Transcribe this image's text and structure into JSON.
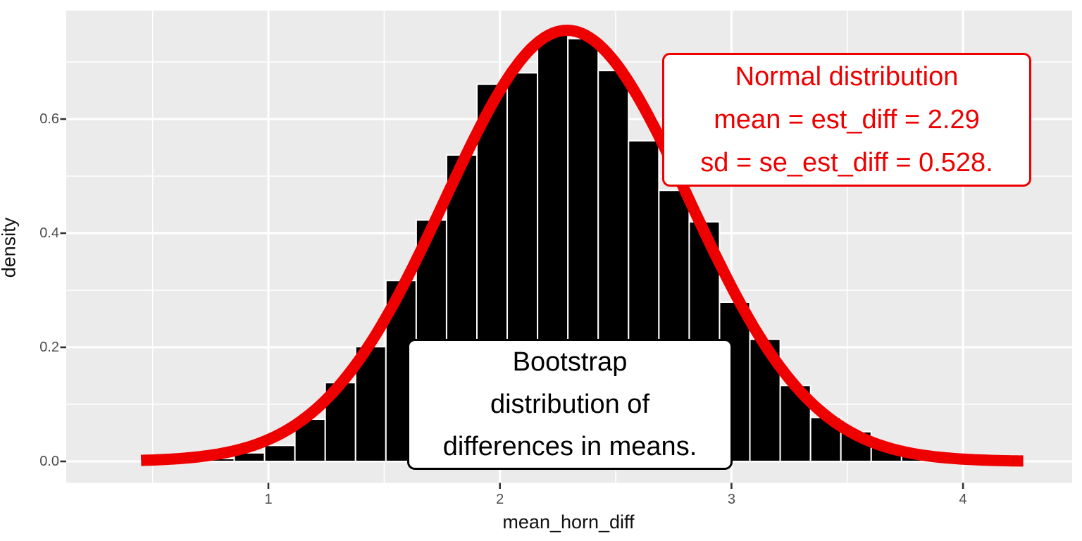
{
  "figure": {
    "x_axis": {
      "title": "mean_horn_diff",
      "tick_labels": [
        "1",
        "2",
        "3",
        "4"
      ],
      "tick_values": [
        1,
        2,
        3,
        4
      ],
      "minor_values": [
        0.5,
        1.5,
        2.5,
        3.5
      ]
    },
    "y_axis": {
      "title": "density",
      "tick_labels": [
        "0.0",
        "0.2",
        "0.4",
        "0.6"
      ],
      "tick_values": [
        0.0,
        0.2,
        0.4,
        0.6
      ],
      "minor_values": [
        0.1,
        0.3,
        0.5,
        0.7
      ]
    }
  },
  "annotations": {
    "normal_box": {
      "lines": [
        "Normal distribution",
        "mean = est_diff = 2.29",
        "sd = se_est_diff = 0.528."
      ]
    },
    "bootstrap_box": {
      "lines": [
        "Bootstrap",
        "distribution of",
        "differences in means."
      ]
    }
  },
  "colors": {
    "panel_bg": "#ebebeb",
    "grid": "#ffffff",
    "bar_fill": "#000000",
    "bar_stroke": "#ffffff",
    "curve_red": "#ee0000",
    "tick_label": "#4d4d4d",
    "tick_mark": "#333333",
    "axis_title": "#111111"
  },
  "chart_data": [
    {
      "type": "bar",
      "name": "bootstrap-histogram",
      "title": "",
      "xlabel": "mean_horn_diff",
      "ylabel": "density",
      "xlim": [
        0.13,
        4.47
      ],
      "ylim": [
        -0.038,
        0.79
      ],
      "grid": "on",
      "legend": "none",
      "bin_width": 0.131,
      "x": [
        0.787,
        0.918,
        1.049,
        1.18,
        1.311,
        1.442,
        1.573,
        1.704,
        1.835,
        1.966,
        2.097,
        2.228,
        2.359,
        2.49,
        2.621,
        2.752,
        2.883,
        3.014,
        3.145,
        3.276,
        3.407,
        3.538,
        3.669,
        3.8,
        3.931
      ],
      "values": [
        0.005,
        0.015,
        0.028,
        0.074,
        0.138,
        0.201,
        0.317,
        0.423,
        0.537,
        0.661,
        0.681,
        0.748,
        0.741,
        0.685,
        0.562,
        0.475,
        0.42,
        0.279,
        0.214,
        0.133,
        0.077,
        0.052,
        0.028,
        0.015,
        0.008
      ]
    },
    {
      "type": "line",
      "name": "normal-density-curve",
      "distribution": "normal",
      "mean": 2.29,
      "sd": 0.528,
      "peak_density": 0.7556,
      "x_range": [
        0.45,
        4.26
      ],
      "stroke_width": 16
    }
  ]
}
